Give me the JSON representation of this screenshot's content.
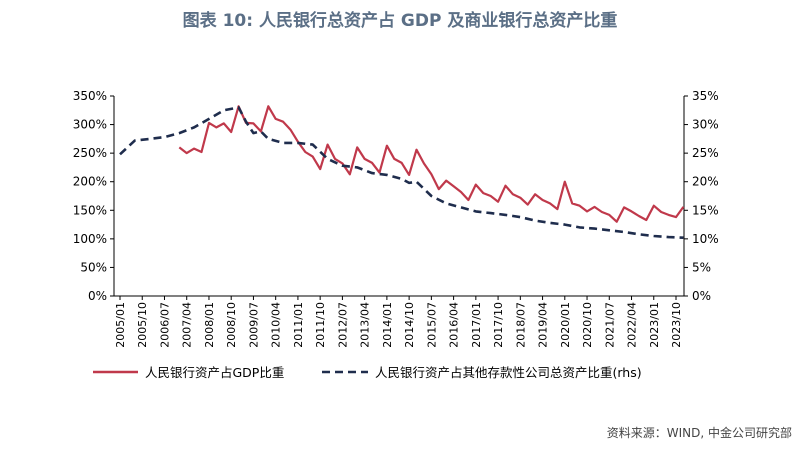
{
  "title": "图表 10: 人民银行总资产占 GDP 及商业银行总资产比重",
  "source": "资料来源：WIND, 中金公司研究部",
  "colors": {
    "series1": "#c0394b",
    "series2": "#1f2d4d",
    "title": "#5b6f86"
  },
  "chart_data": {
    "type": "line",
    "title": "图表 10: 人民银行总资产占 GDP 及商业银行总资产比重",
    "x_ticks": [
      "2005/01",
      "2005/10",
      "2006/07",
      "2007/04",
      "2008/01",
      "2008/10",
      "2009/07",
      "2010/04",
      "2011/01",
      "2011/10",
      "2012/07",
      "2013/04",
      "2014/01",
      "2014/10",
      "2015/07",
      "2016/04",
      "2017/01",
      "2017/10",
      "2018/07",
      "2019/04",
      "2020/01",
      "2020/10",
      "2021/07",
      "2022/04",
      "2023/01",
      "2023/10"
    ],
    "y_left": {
      "ticks": [
        "0%",
        "50%",
        "100%",
        "150%",
        "200%",
        "250%",
        "300%",
        "350%"
      ],
      "min": 0,
      "max": 350,
      "unit": "%"
    },
    "y_right": {
      "ticks": [
        "0%",
        "5%",
        "10%",
        "15%",
        "20%",
        "25%",
        "30%",
        "35%"
      ],
      "min": 0,
      "max": 35,
      "unit": "%"
    },
    "legend_position": "bottom",
    "series": [
      {
        "name": "人民银行资产占GDP比重",
        "axis": "left",
        "style": "solid",
        "points": [
          [
            "2007/01",
            260
          ],
          [
            "2007/04",
            250
          ],
          [
            "2007/07",
            258
          ],
          [
            "2007/10",
            252
          ],
          [
            "2008/01",
            303
          ],
          [
            "2008/04",
            295
          ],
          [
            "2008/07",
            302
          ],
          [
            "2008/10",
            287
          ],
          [
            "2009/01",
            332
          ],
          [
            "2009/04",
            303
          ],
          [
            "2009/07",
            302
          ],
          [
            "2009/10",
            288
          ],
          [
            "2010/01",
            332
          ],
          [
            "2010/04",
            310
          ],
          [
            "2010/07",
            305
          ],
          [
            "2010/10",
            291
          ],
          [
            "2011/01",
            270
          ],
          [
            "2011/04",
            252
          ],
          [
            "2011/07",
            244
          ],
          [
            "2011/10",
            222
          ],
          [
            "2012/01",
            265
          ],
          [
            "2012/04",
            240
          ],
          [
            "2012/07",
            232
          ],
          [
            "2012/10",
            213
          ],
          [
            "2013/01",
            260
          ],
          [
            "2013/04",
            240
          ],
          [
            "2013/07",
            233
          ],
          [
            "2013/10",
            216
          ],
          [
            "2014/01",
            263
          ],
          [
            "2014/04",
            240
          ],
          [
            "2014/07",
            233
          ],
          [
            "2014/10",
            212
          ],
          [
            "2015/01",
            256
          ],
          [
            "2015/04",
            232
          ],
          [
            "2015/07",
            213
          ],
          [
            "2015/10",
            187
          ],
          [
            "2016/01",
            202
          ],
          [
            "2016/04",
            192
          ],
          [
            "2016/07",
            182
          ],
          [
            "2016/10",
            168
          ],
          [
            "2017/01",
            195
          ],
          [
            "2017/04",
            180
          ],
          [
            "2017/07",
            175
          ],
          [
            "2017/10",
            165
          ],
          [
            "2018/01",
            193
          ],
          [
            "2018/04",
            178
          ],
          [
            "2018/07",
            172
          ],
          [
            "2018/10",
            160
          ],
          [
            "2019/01",
            178
          ],
          [
            "2019/04",
            168
          ],
          [
            "2019/07",
            162
          ],
          [
            "2019/10",
            152
          ],
          [
            "2020/01",
            200
          ],
          [
            "2020/04",
            162
          ],
          [
            "2020/07",
            158
          ],
          [
            "2020/10",
            148
          ],
          [
            "2021/01",
            156
          ],
          [
            "2021/04",
            147
          ],
          [
            "2021/07",
            142
          ],
          [
            "2021/10",
            130
          ],
          [
            "2022/01",
            155
          ],
          [
            "2022/04",
            148
          ],
          [
            "2022/07",
            140
          ],
          [
            "2022/10",
            133
          ],
          [
            "2023/01",
            158
          ],
          [
            "2023/04",
            147
          ],
          [
            "2023/07",
            142
          ],
          [
            "2023/10",
            138
          ],
          [
            "2024/01",
            156
          ]
        ]
      },
      {
        "name": "人民银行资产占其他存款性公司总资产比重(rhs)",
        "axis": "right",
        "style": "dashed",
        "points": [
          [
            "2005/01",
            24.8
          ],
          [
            "2005/07",
            27.2
          ],
          [
            "2006/01",
            27.5
          ],
          [
            "2006/07",
            27.8
          ],
          [
            "2007/01",
            28.5
          ],
          [
            "2007/07",
            29.5
          ],
          [
            "2008/01",
            31.0
          ],
          [
            "2008/07",
            32.5
          ],
          [
            "2009/01",
            33.0
          ],
          [
            "2009/04",
            30.5
          ],
          [
            "2009/07",
            28.5
          ],
          [
            "2009/10",
            28.8
          ],
          [
            "2010/01",
            27.5
          ],
          [
            "2010/07",
            26.8
          ],
          [
            "2011/01",
            26.8
          ],
          [
            "2011/07",
            26.5
          ],
          [
            "2012/01",
            24.0
          ],
          [
            "2012/07",
            22.8
          ],
          [
            "2013/01",
            22.5
          ],
          [
            "2013/07",
            21.5
          ],
          [
            "2014/01",
            21.2
          ],
          [
            "2014/07",
            20.5
          ],
          [
            "2014/10",
            19.8
          ],
          [
            "2015/01",
            20.0
          ],
          [
            "2015/07",
            17.5
          ],
          [
            "2016/01",
            16.2
          ],
          [
            "2016/07",
            15.5
          ],
          [
            "2017/01",
            14.8
          ],
          [
            "2017/07",
            14.5
          ],
          [
            "2018/01",
            14.2
          ],
          [
            "2018/07",
            13.8
          ],
          [
            "2019/01",
            13.2
          ],
          [
            "2019/07",
            12.8
          ],
          [
            "2020/01",
            12.5
          ],
          [
            "2020/07",
            12.0
          ],
          [
            "2021/01",
            11.8
          ],
          [
            "2021/07",
            11.5
          ],
          [
            "2022/01",
            11.2
          ],
          [
            "2022/07",
            10.8
          ],
          [
            "2023/01",
            10.5
          ],
          [
            "2023/07",
            10.3
          ],
          [
            "2024/01",
            10.2
          ]
        ]
      }
    ]
  }
}
